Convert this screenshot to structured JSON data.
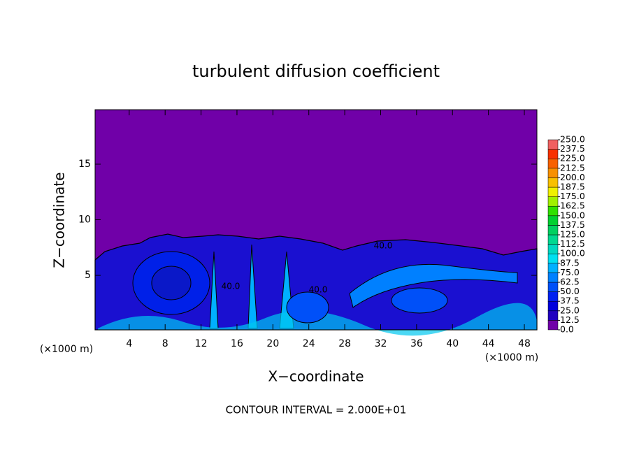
{
  "chart_data": {
    "type": "contour",
    "title": "turbulent diffusion coefficient",
    "xlabel": "X−coordinate",
    "ylabel": "Z−coordinate",
    "x_unit": "(×1000 m)",
    "annotation": "CONTOUR INTERVAL = 2.000E+01",
    "contour_labels": [
      "40.0",
      "40.0",
      "40.0"
    ],
    "xlim": [
      0.2,
      49.4
    ],
    "ylim": [
      0.1,
      19.9
    ],
    "xticks": [
      4,
      8,
      12,
      16,
      20,
      24,
      28,
      32,
      36,
      40,
      44,
      48
    ],
    "yticks": [
      5,
      10,
      15
    ],
    "background_color": "#7000a8",
    "levels": [
      {
        "value": 0,
        "label": "0.0"
      },
      {
        "value": 12.5,
        "label": "12.5"
      },
      {
        "value": 25,
        "label": "25.0"
      },
      {
        "value": 37.5,
        "label": "37.5"
      },
      {
        "value": 50,
        "label": "50.0"
      },
      {
        "value": 62.5,
        "label": "62.5"
      },
      {
        "value": 75,
        "label": "75.0"
      },
      {
        "value": 87.5,
        "label": "87.5"
      },
      {
        "value": 100,
        "label": "100.0"
      },
      {
        "value": 112.5,
        "label": "112.5"
      },
      {
        "value": 125,
        "label": "125.0"
      },
      {
        "value": 137.5,
        "label": "137.5"
      },
      {
        "value": 150,
        "label": "150.0"
      },
      {
        "value": 162.5,
        "label": "162.5"
      },
      {
        "value": 175,
        "label": "175.0"
      },
      {
        "value": 187.5,
        "label": "187.5"
      },
      {
        "value": 200,
        "label": "200.0"
      },
      {
        "value": 212.5,
        "label": "212.5"
      },
      {
        "value": 225,
        "label": "225.0"
      },
      {
        "value": 237.5,
        "label": "237.5"
      },
      {
        "value": 250,
        "label": "250.0"
      }
    ],
    "colors": [
      "#7000a8",
      "#2000c0",
      "#0000dc",
      "#0020f0",
      "#0050f8",
      "#0080ff",
      "#00b0ff",
      "#00e0f0",
      "#00d8c0",
      "#00d890",
      "#00d060",
      "#00d030",
      "#30e000",
      "#a0f000",
      "#f0f000",
      "#f8c000",
      "#f89000",
      "#f86000",
      "#f83000",
      "#f06060"
    ]
  }
}
